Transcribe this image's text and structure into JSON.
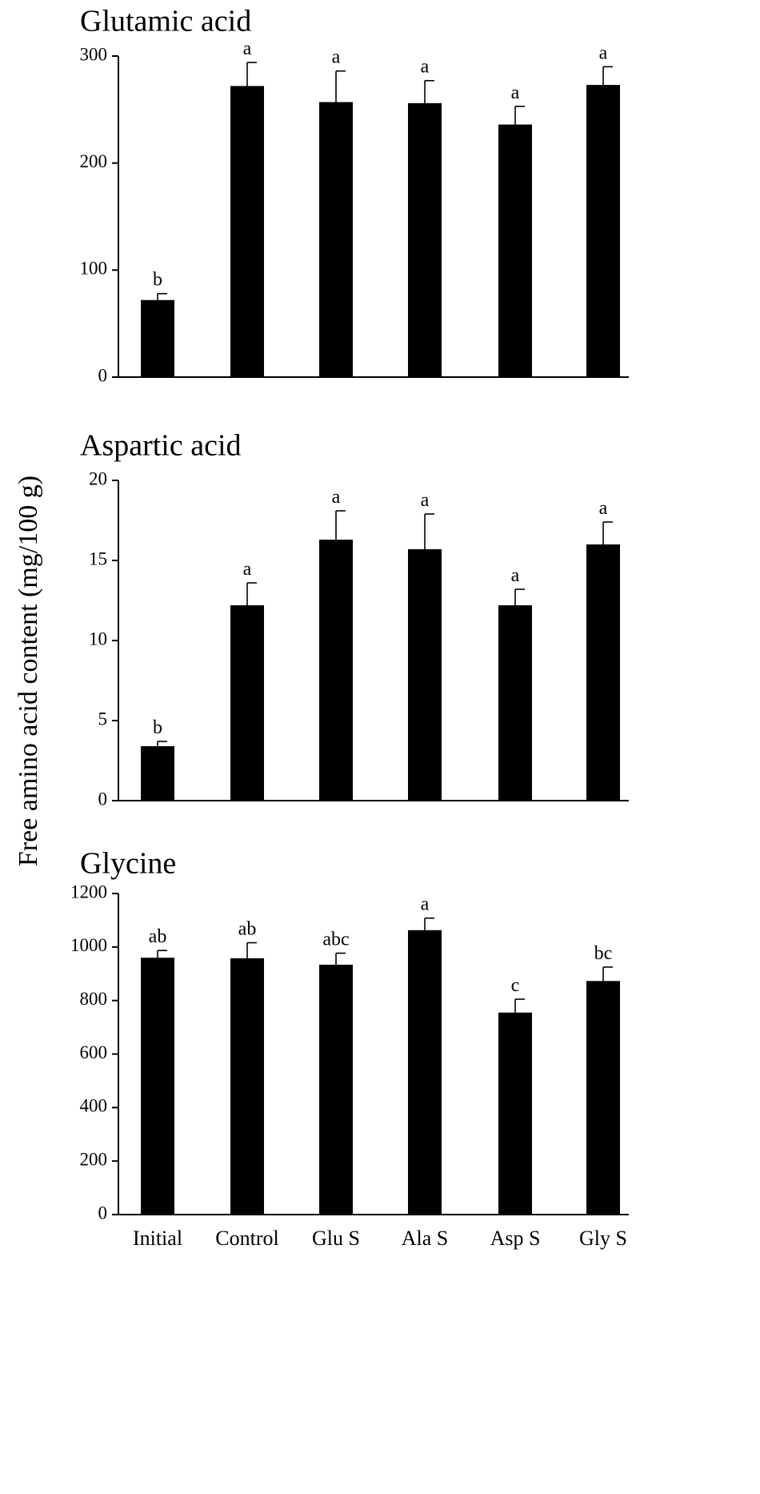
{
  "ylabel": "Free amino acid content (mg/100 g)",
  "categories": [
    "Initial",
    "Control",
    "Glu S",
    "Ala S",
    "Asp S",
    "Gly S"
  ],
  "colors": {
    "bar": "#000000",
    "axis": "#000000"
  },
  "chart_data": [
    {
      "type": "bar",
      "title": "Glutamic acid",
      "categories": [
        "Initial",
        "Control",
        "Glu S",
        "Ala S",
        "Asp S",
        "Gly S"
      ],
      "values": [
        72,
        272,
        257,
        256,
        236,
        273
      ],
      "errors": [
        6,
        22,
        29,
        21,
        17,
        17
      ],
      "significance": [
        "b",
        "a",
        "a",
        "a",
        "a",
        "a"
      ],
      "yticks": [
        0,
        100,
        200,
        300
      ],
      "ylim": [
        0,
        300
      ],
      "grid": false
    },
    {
      "type": "bar",
      "title": "Aspartic acid",
      "categories": [
        "Initial",
        "Control",
        "Glu S",
        "Ala S",
        "Asp S",
        "Gly S"
      ],
      "values": [
        3.4,
        12.2,
        16.3,
        15.7,
        12.2,
        16.0
      ],
      "errors": [
        0.3,
        1.4,
        1.8,
        2.2,
        1.0,
        1.4
      ],
      "significance": [
        "b",
        "a",
        "a",
        "a",
        "a",
        "a"
      ],
      "yticks": [
        0,
        5,
        10,
        15,
        20
      ],
      "ylim": [
        0,
        20
      ],
      "grid": false
    },
    {
      "type": "bar",
      "title": "Glycine",
      "categories": [
        "Initial",
        "Control",
        "Glu S",
        "Ala S",
        "Asp S",
        "Gly S"
      ],
      "values": [
        960,
        958,
        934,
        1063,
        755,
        873
      ],
      "errors": [
        27,
        58,
        43,
        45,
        50,
        52
      ],
      "significance": [
        "ab",
        "ab",
        "abc",
        "a",
        "c",
        "bc"
      ],
      "yticks": [
        0,
        200,
        400,
        600,
        800,
        1000,
        1200
      ],
      "ylim": [
        0,
        1200
      ],
      "grid": false
    }
  ]
}
